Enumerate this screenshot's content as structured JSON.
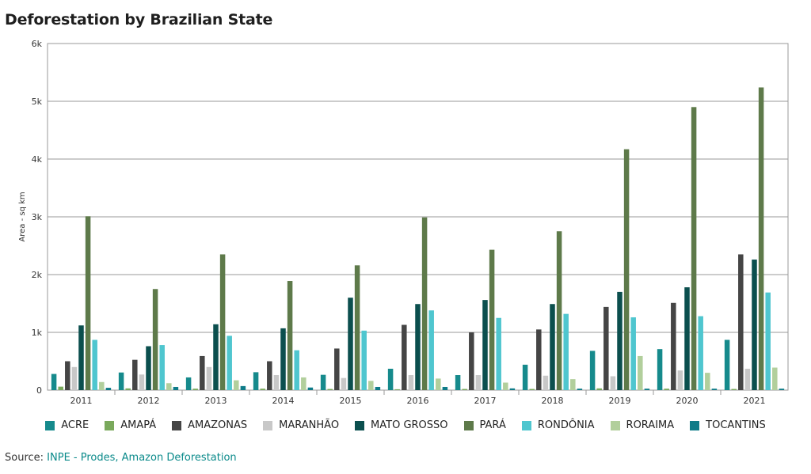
{
  "title": "Deforestation by Brazilian State",
  "source": {
    "label": "Source:",
    "link_text": "INPE - Prodes, Amazon Deforestation"
  },
  "chart_data": {
    "type": "bar",
    "title": "Deforestation by Brazilian State",
    "xlabel": "",
    "ylabel": "Area - sq km",
    "ylim": [
      0,
      6000
    ],
    "yticks": [
      "0",
      "1k",
      "2k",
      "3k",
      "4k",
      "5k",
      "6k"
    ],
    "grid": true,
    "legend_position": "bottom",
    "categories": [
      "2011",
      "2012",
      "2013",
      "2014",
      "2015",
      "2016",
      "2017",
      "2018",
      "2019",
      "2020",
      "2021"
    ],
    "series": [
      {
        "name": "ACRE",
        "color": "#168a8c",
        "values": [
          280,
          305,
          220,
          310,
          265,
          370,
          260,
          440,
          680,
          710,
          870
        ]
      },
      {
        "name": "AMAPÁ",
        "color": "#7aa95c",
        "values": [
          60,
          30,
          25,
          25,
          20,
          15,
          20,
          20,
          30,
          25,
          20
        ]
      },
      {
        "name": "AMAZONAS",
        "color": "#454545",
        "values": [
          500,
          525,
          590,
          500,
          720,
          1130,
          1000,
          1050,
          1440,
          1510,
          2350
        ]
      },
      {
        "name": "MARANHÃO",
        "color": "#c8c8c8",
        "values": [
          400,
          270,
          400,
          260,
          210,
          260,
          260,
          250,
          240,
          340,
          370
        ]
      },
      {
        "name": "MATO GROSSO",
        "color": "#0b4f4e",
        "values": [
          1120,
          760,
          1140,
          1070,
          1600,
          1490,
          1560,
          1490,
          1700,
          1780,
          2260
        ]
      },
      {
        "name": "PARÁ",
        "color": "#5e7a4a",
        "values": [
          3010,
          1750,
          2350,
          1890,
          2160,
          2990,
          2430,
          2750,
          4170,
          4900,
          5240
        ]
      },
      {
        "name": "RONDÔNIA",
        "color": "#4fc6cf",
        "values": [
          870,
          780,
          940,
          690,
          1030,
          1380,
          1250,
          1320,
          1260,
          1280,
          1690
        ]
      },
      {
        "name": "RORAIMA",
        "color": "#b2cf9c",
        "values": [
          140,
          120,
          170,
          220,
          160,
          200,
          130,
          190,
          590,
          300,
          390
        ]
      },
      {
        "name": "TOCANTINS",
        "color": "#0e7b88",
        "values": [
          40,
          55,
          70,
          45,
          55,
          55,
          30,
          25,
          25,
          25,
          25
        ]
      }
    ]
  }
}
